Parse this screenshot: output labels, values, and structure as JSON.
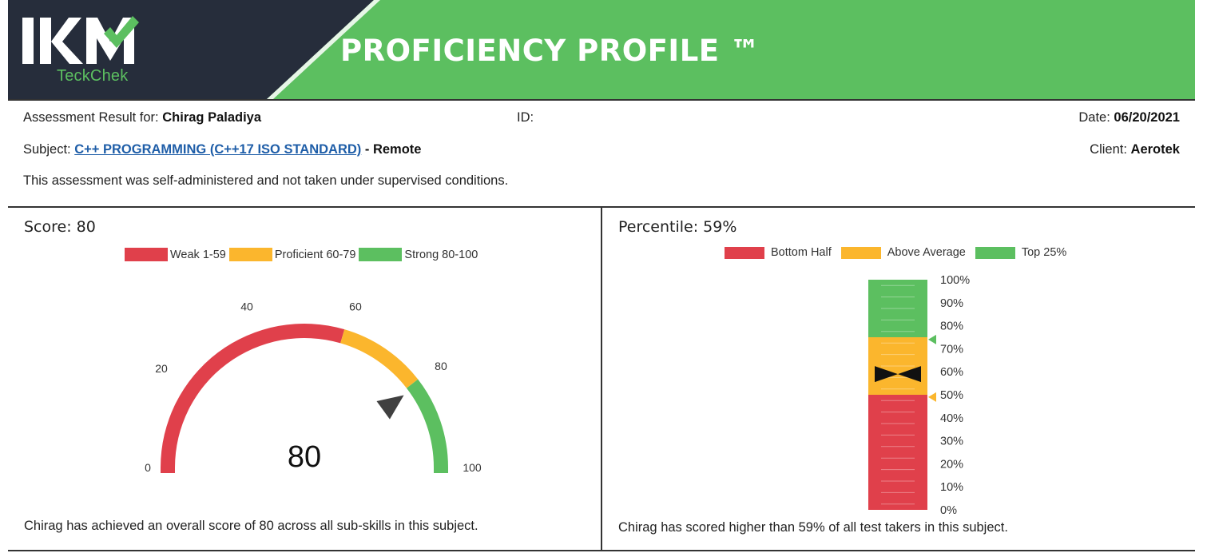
{
  "header": {
    "logo_text": "IKM",
    "logo_sub": "TeckChek",
    "title": "PROFICIENCY PROFILE ™"
  },
  "info": {
    "result_label": "Assessment Result for:",
    "candidate_name": "Chirag Paladiya",
    "id_label": "ID:",
    "date_label": "Date:",
    "date_value": "06/20/2021",
    "subject_label": "Subject:",
    "subject_value": "C++ PROGRAMMING (C++17 ISO STANDARD)",
    "subject_suffix": "- Remote",
    "client_label": "Client:",
    "client_value": "Aerotek",
    "note": "This assessment was self-administered and not taken under supervised conditions."
  },
  "score_panel": {
    "title": "Score: 80",
    "legend": [
      {
        "label": "Weak 1-59",
        "color": "#e0404b"
      },
      {
        "label": "Proficient 60-79",
        "color": "#fbb62d"
      },
      {
        "label": "Strong 80-100",
        "color": "#5cbf60"
      }
    ],
    "summary": "Chirag has achieved an overall score of 80 across all sub-skills in this subject."
  },
  "percentile_panel": {
    "title": "Percentile: 59%",
    "legend": [
      {
        "label": "Bottom Half",
        "color": "#e0404b"
      },
      {
        "label": "Above Average",
        "color": "#fbb62d"
      },
      {
        "label": "Top 25%",
        "color": "#5cbf60"
      }
    ],
    "summary": "Chirag has scored higher than 59% of all test takers in this subject."
  },
  "chart_data": [
    {
      "type": "gauge",
      "title": "Score: 80",
      "value": 80,
      "value_label": "80",
      "range": [
        0,
        100
      ],
      "ticks": [
        0,
        20,
        40,
        60,
        80,
        100
      ],
      "tick_labels": [
        "0",
        "20",
        "40",
        "60",
        "80",
        "100"
      ],
      "bands": [
        {
          "from": 0,
          "to": 59,
          "color": "#e0404b",
          "label": "Weak 1-59"
        },
        {
          "from": 59,
          "to": 79,
          "color": "#fbb62d",
          "label": "Proficient 60-79"
        },
        {
          "from": 79,
          "to": 100,
          "color": "#5cbf60",
          "label": "Strong 80-100"
        }
      ]
    },
    {
      "type": "bullet-vertical",
      "title": "Percentile: 59%",
      "value": 59,
      "range": [
        0,
        100
      ],
      "ticks": [
        0,
        10,
        20,
        30,
        40,
        50,
        60,
        70,
        80,
        90,
        100
      ],
      "tick_labels": [
        "0%",
        "10%",
        "20%",
        "30%",
        "40%",
        "50%",
        "60%",
        "70%",
        "80%",
        "90%",
        "100%"
      ],
      "bands": [
        {
          "from": 0,
          "to": 50,
          "color": "#e0404b",
          "label": "Bottom Half"
        },
        {
          "from": 50,
          "to": 75,
          "color": "#fbb62d",
          "label": "Above Average"
        },
        {
          "from": 75,
          "to": 100,
          "color": "#5cbf60",
          "label": "Top 25%"
        }
      ],
      "markers": [
        {
          "value": 74,
          "color": "#5cbf60"
        },
        {
          "value": 49,
          "color": "#fbb62d"
        }
      ]
    }
  ]
}
